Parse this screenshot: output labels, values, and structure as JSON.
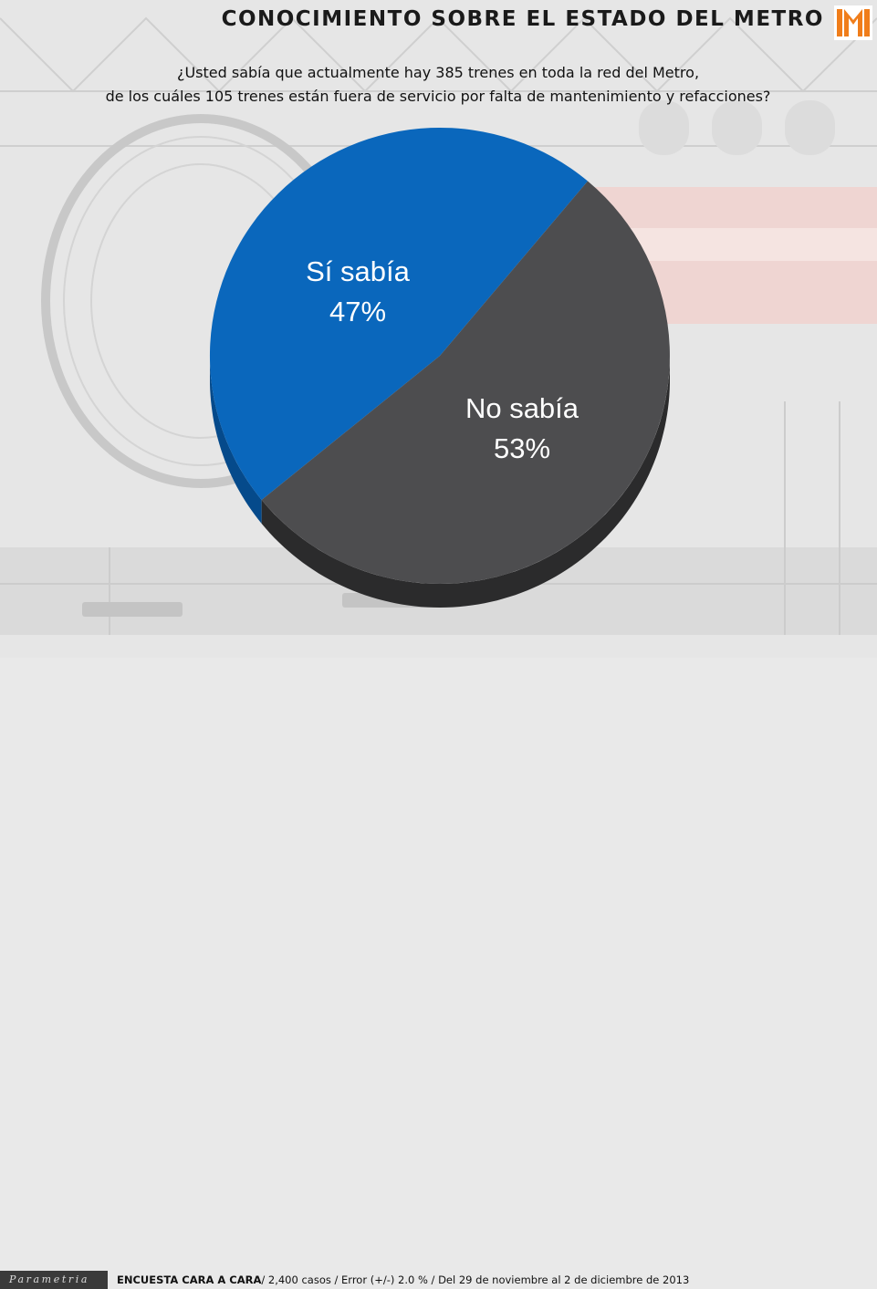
{
  "header": {
    "title": "CONOCIMIENTO SOBRE EL ESTADO DEL METRO"
  },
  "question": {
    "line1": "¿Usted sabía que actualmente hay 385 trenes en toda la red del Metro,",
    "line2": "de los cuáles 105 trenes están fuera de servicio por falta de mantenimiento y refacciones?"
  },
  "footer": {
    "brand": "Parametria",
    "survey_bold": "ENCUESTA CARA A CARA",
    "survey_rest": "/ 2,400 casos / Error (+/-) 2.0 % / Del 29 de noviembre al 2 de diciembre de 2013"
  },
  "chart_data": {
    "type": "pie",
    "style": "3d",
    "slices": [
      {
        "label": "Sí sabía",
        "value": 47,
        "value_label": "47%",
        "color": "#0a67bc"
      },
      {
        "label": "No sabía",
        "value": 53,
        "value_label": "53%",
        "color": "#4d4d4f"
      }
    ]
  },
  "colors": {
    "logo_orange": "#f07d1a"
  }
}
